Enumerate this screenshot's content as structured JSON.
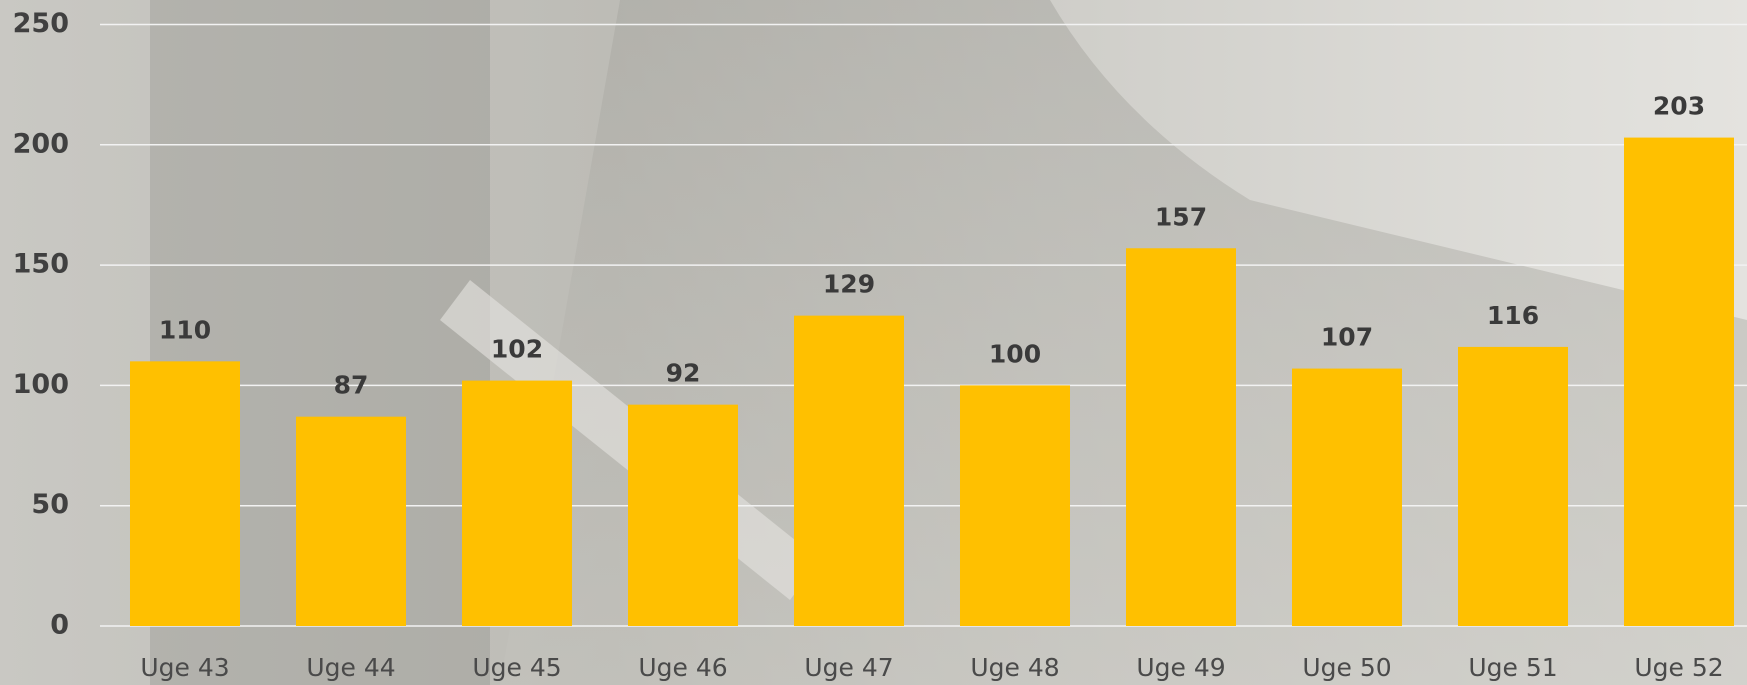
{
  "chart_data": {
    "type": "bar",
    "categories": [
      "Uge 43",
      "Uge 44",
      "Uge 45",
      "Uge 46",
      "Uge 47",
      "Uge 48",
      "Uge 49",
      "Uge 50",
      "Uge 51",
      "Uge 52"
    ],
    "values": [
      110,
      87,
      102,
      92,
      129,
      100,
      157,
      107,
      116,
      203
    ],
    "color": "#ffc000",
    "ylim": [
      0,
      250
    ],
    "yticks": [
      0,
      50,
      100,
      150,
      200,
      250
    ],
    "grid": true
  }
}
